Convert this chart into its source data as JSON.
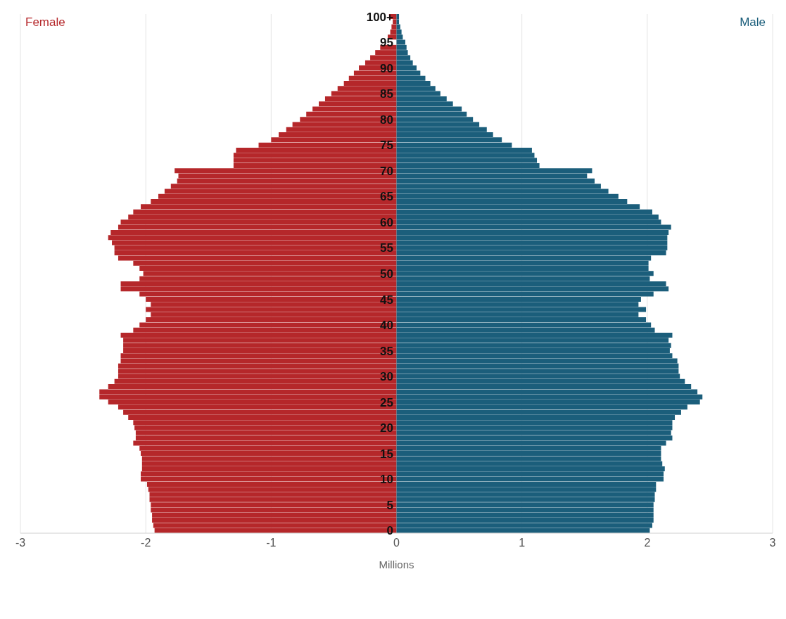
{
  "chart_data": {
    "type": "bar",
    "orientation": "horizontal",
    "stacked": true,
    "xlabel": "Millions",
    "categories": [
      "100+",
      null,
      null,
      null,
      null,
      "95",
      null,
      null,
      null,
      null,
      "90",
      null,
      null,
      null,
      null,
      "85",
      null,
      null,
      null,
      null,
      "80",
      null,
      null,
      null,
      null,
      "75",
      null,
      null,
      null,
      null,
      "70",
      null,
      null,
      null,
      null,
      "65",
      null,
      null,
      null,
      null,
      "60",
      null,
      null,
      null,
      null,
      "55",
      null,
      null,
      null,
      null,
      "50",
      null,
      null,
      null,
      null,
      "45",
      null,
      null,
      null,
      null,
      "40",
      null,
      null,
      null,
      null,
      "35",
      null,
      null,
      null,
      null,
      "30",
      null,
      null,
      null,
      null,
      "25",
      null,
      null,
      null,
      null,
      "20",
      null,
      null,
      null,
      null,
      "15",
      null,
      null,
      null,
      null,
      "10",
      null,
      null,
      null,
      null,
      "5",
      null,
      null,
      null,
      null,
      "0"
    ],
    "series": [
      {
        "name": "Female",
        "color": "#b5272a",
        "values": [
          -0.06,
          -0.03,
          -0.04,
          -0.05,
          -0.07,
          null,
          -0.13,
          -0.17,
          -0.21,
          -0.25,
          -0.3,
          -0.34,
          -0.38,
          -0.42,
          -0.47,
          -0.52,
          -0.57,
          -0.62,
          -0.67,
          -0.72,
          -0.77,
          -0.83,
          -0.88,
          -0.94,
          -1.0,
          -1.1,
          -1.28,
          -1.3,
          -1.3,
          -1.3,
          -1.77,
          -1.74,
          -1.75,
          -1.8,
          -1.85,
          -1.9,
          -1.96,
          -2.04,
          -2.1,
          -2.14,
          -2.2,
          -2.22,
          -2.28,
          -2.3,
          -2.27,
          -2.25,
          -2.25,
          -2.22,
          -2.1,
          -2.05,
          -2.02,
          -2.05,
          -2.2,
          -2.2,
          -2.05,
          -2.0,
          -1.96,
          -2.0,
          -1.96,
          -2.0,
          -2.05,
          -2.1,
          -2.2,
          -2.18,
          -2.18,
          -2.18,
          -2.2,
          -2.2,
          -2.22,
          -2.22,
          -2.22,
          -2.25,
          -2.3,
          -2.37,
          -2.37,
          -2.3,
          -2.22,
          -2.18,
          -2.14,
          -2.1,
          -2.09,
          -2.08,
          -2.08,
          -2.1,
          -2.05,
          -2.04,
          -2.03,
          -2.03,
          -2.03,
          -2.04,
          -2.04,
          -1.99,
          -1.98,
          -1.97,
          -1.97,
          -1.96,
          -1.96,
          -1.95,
          -1.95,
          -1.94,
          -1.93
        ]
      },
      {
        "name": "Male",
        "color": "#1b5e7b",
        "values": [
          0.02,
          0.02,
          0.03,
          0.04,
          0.05,
          0.07,
          0.08,
          0.09,
          0.11,
          0.13,
          0.16,
          0.19,
          0.23,
          0.27,
          0.31,
          0.35,
          0.4,
          0.45,
          0.52,
          0.56,
          0.61,
          0.66,
          0.72,
          0.77,
          0.84,
          0.92,
          1.08,
          1.1,
          1.12,
          1.14,
          1.56,
          1.52,
          1.58,
          1.63,
          1.69,
          1.77,
          1.84,
          1.94,
          2.04,
          2.09,
          2.11,
          2.19,
          2.17,
          2.16,
          2.16,
          2.16,
          2.15,
          2.03,
          2.01,
          2.01,
          2.05,
          2.02,
          2.15,
          2.17,
          2.05,
          1.95,
          1.93,
          1.99,
          1.93,
          1.99,
          2.03,
          2.06,
          2.2,
          2.17,
          2.19,
          2.18,
          2.2,
          2.24,
          2.25,
          2.25,
          2.26,
          2.3,
          2.35,
          2.4,
          2.44,
          2.42,
          2.32,
          2.27,
          2.22,
          2.2,
          2.2,
          2.19,
          2.2,
          2.15,
          2.11,
          2.11,
          2.11,
          2.12,
          2.14,
          2.13,
          2.13,
          2.07,
          2.07,
          2.06,
          2.06,
          2.05,
          2.05,
          2.05,
          2.05,
          2.04,
          2.02
        ]
      }
    ],
    "xlim": [
      -3,
      3
    ],
    "xticks": [
      -3,
      -2,
      -1,
      0,
      1,
      2,
      3
    ],
    "grid": "x"
  }
}
